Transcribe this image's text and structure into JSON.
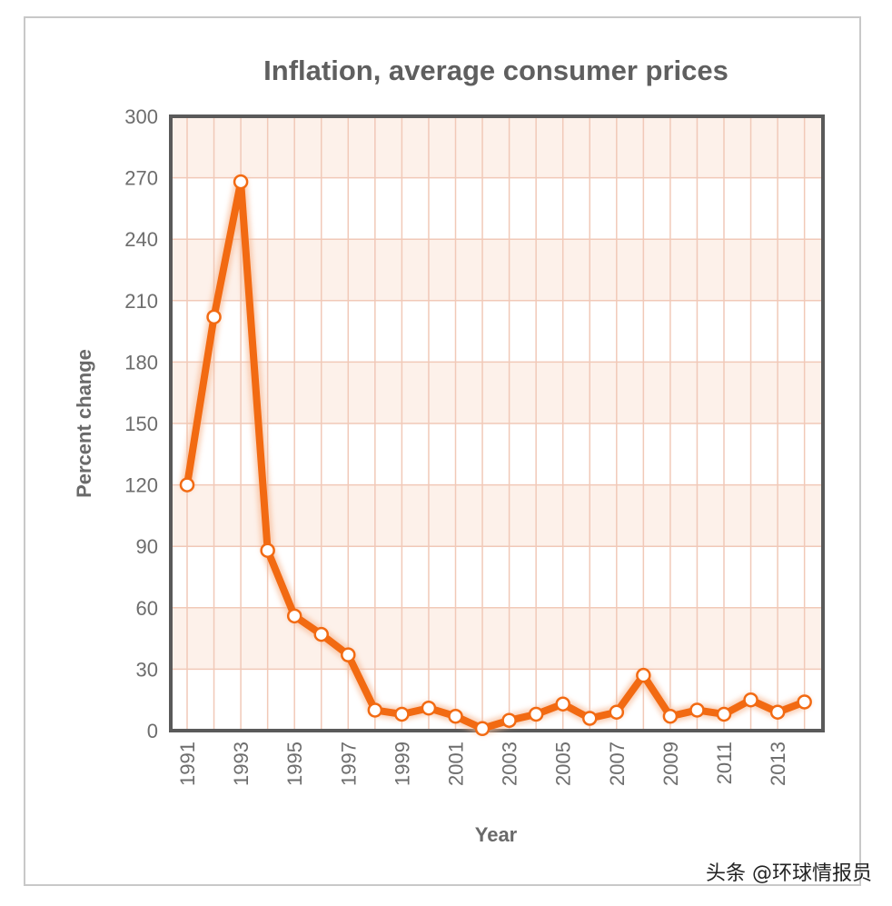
{
  "chart_data": {
    "type": "line",
    "title": "Inflation, average consumer prices",
    "xlabel": "Year",
    "ylabel": "Percent change",
    "ylim": [
      0,
      300
    ],
    "yticks": [
      "0",
      "30",
      "60",
      "90",
      "120",
      "150",
      "180",
      "210",
      "240",
      "270",
      "300"
    ],
    "xticks": [
      "1991",
      "1993",
      "1995",
      "1997",
      "1999",
      "2001",
      "2003",
      "2005",
      "2007",
      "2009",
      "2011",
      "2013"
    ],
    "series": [
      {
        "name": "Inflation",
        "color": "#f26a12",
        "x": [
          1991,
          1992,
          1993,
          1994,
          1995,
          1996,
          1997,
          1998,
          1999,
          2000,
          2001,
          2002,
          2003,
          2004,
          2005,
          2006,
          2007,
          2008,
          2009,
          2010,
          2011,
          2012,
          2013,
          2014
        ],
        "values": [
          120,
          202,
          268,
          88,
          56,
          47,
          37,
          10,
          8,
          11,
          7,
          1,
          5,
          8,
          13,
          6,
          9,
          27,
          7,
          10,
          8,
          15,
          9,
          14
        ]
      }
    ],
    "grid": true
  },
  "watermark": "头条 @环球情报员"
}
